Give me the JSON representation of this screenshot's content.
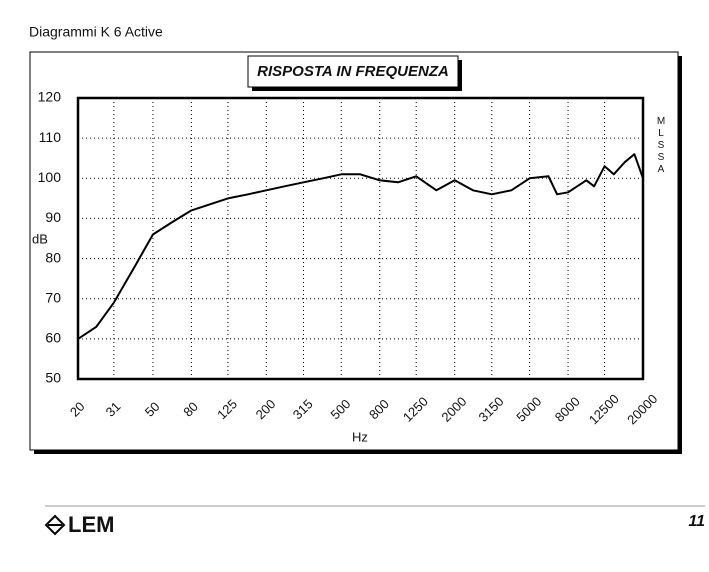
{
  "header": {
    "title": "Diagrammi K 6 Active"
  },
  "chart_data": {
    "type": "line",
    "title": "RISPOSTA IN FREQUENZA",
    "y_label": "dB",
    "x_label": "Hz",
    "side_label": "MLSSA",
    "x": [
      20,
      25,
      31,
      40,
      50,
      63,
      80,
      100,
      125,
      160,
      200,
      250,
      315,
      400,
      500,
      630,
      800,
      1000,
      1250,
      1600,
      2000,
      2500,
      3150,
      4000,
      5000,
      6300,
      7000,
      8000,
      10000,
      11000,
      12500,
      14000,
      16000,
      18000,
      20000
    ],
    "values": [
      60,
      63,
      69,
      78,
      86,
      89,
      92,
      93.5,
      95,
      96,
      97,
      98,
      99,
      100,
      101,
      101,
      99.5,
      99,
      100.5,
      97,
      99.5,
      97,
      96,
      97,
      100,
      100.5,
      96,
      96.5,
      99.5,
      98,
      103,
      101,
      104,
      106,
      100
    ],
    "color": "#000000",
    "xlim": [
      20,
      20000
    ],
    "xticks": [
      20,
      31,
      50,
      80,
      125,
      200,
      315,
      500,
      800,
      1250,
      2000,
      3150,
      5000,
      8000,
      12500,
      20000
    ],
    "xlog": true,
    "ylim": [
      50,
      120
    ],
    "yticks": [
      50,
      60,
      70,
      80,
      90,
      100,
      110,
      120
    ],
    "grid": true
  },
  "footer": {
    "logo": "LEM",
    "page": "11"
  }
}
